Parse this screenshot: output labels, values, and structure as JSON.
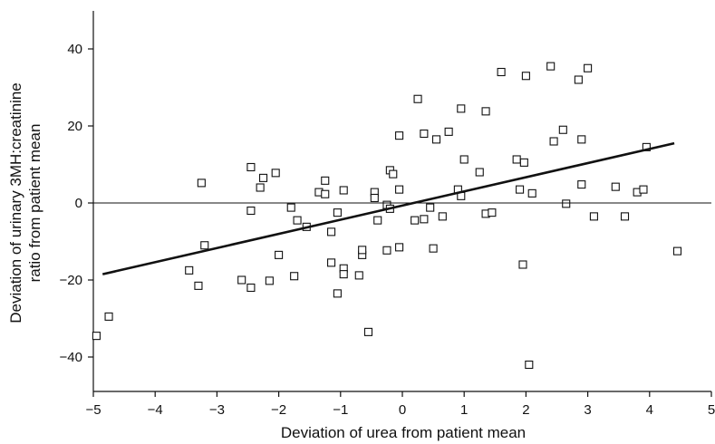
{
  "chart_data": {
    "type": "scatter",
    "title": "",
    "xlabel": "Deviation of urea from patient mean",
    "ylabel_line1": "Deviation of urinary 3MH:creatinine",
    "ylabel_line2": "ratio from patient mean",
    "xlim": [
      -5,
      5
    ],
    "ylim": [
      -50,
      50
    ],
    "x_ticks": [
      -5,
      -4,
      -3,
      -2,
      -1,
      0,
      1,
      2,
      3,
      4,
      5
    ],
    "x_tick_labels": [
      "−5",
      "−4",
      "−3",
      "−2",
      "−1",
      "0",
      "1",
      "2",
      "3",
      "4",
      "5"
    ],
    "y_ticks": [
      -40,
      -20,
      0,
      20,
      40
    ],
    "y_tick_labels": [
      "−40",
      "−20",
      "0",
      "20",
      "40"
    ],
    "grid": false,
    "marker": "open-square",
    "zero_reference_line": {
      "y": 0
    },
    "regression_line": {
      "x": [
        -4.85,
        4.4
      ],
      "y": [
        -18.5,
        15.5
      ]
    },
    "points": [
      [
        -4.95,
        -34.5
      ],
      [
        -4.75,
        -29.5
      ],
      [
        -3.45,
        -17.5
      ],
      [
        -3.3,
        -21.5
      ],
      [
        -3.25,
        5.2
      ],
      [
        -3.2,
        -11
      ],
      [
        -2.6,
        -20
      ],
      [
        -2.45,
        9.3
      ],
      [
        -2.45,
        -2
      ],
      [
        -2.45,
        -22
      ],
      [
        -2.3,
        4
      ],
      [
        -2.25,
        6.5
      ],
      [
        -2.15,
        -20.2
      ],
      [
        -2.05,
        7.8
      ],
      [
        -2.0,
        -13.5
      ],
      [
        -1.8,
        -1.2
      ],
      [
        -1.75,
        -19
      ],
      [
        -1.7,
        -4.5
      ],
      [
        -1.55,
        -6.2
      ],
      [
        -1.35,
        2.8
      ],
      [
        -1.25,
        5.8
      ],
      [
        -1.25,
        2.3
      ],
      [
        -1.15,
        -7.5
      ],
      [
        -1.15,
        -15.5
      ],
      [
        -1.05,
        -2.5
      ],
      [
        -1.05,
        -23.5
      ],
      [
        -0.95,
        -17
      ],
      [
        -0.95,
        -18.5
      ],
      [
        -0.95,
        3.3
      ],
      [
        -0.7,
        -18.8
      ],
      [
        -0.65,
        -13.5
      ],
      [
        -0.65,
        -12.2
      ],
      [
        -0.55,
        -33.5
      ],
      [
        -0.45,
        2.8
      ],
      [
        -0.45,
        1.3
      ],
      [
        -0.4,
        -4.5
      ],
      [
        -0.25,
        -0.5
      ],
      [
        -0.25,
        -12.3
      ],
      [
        -0.2,
        -1.5
      ],
      [
        -0.2,
        8.5
      ],
      [
        -0.15,
        7.5
      ],
      [
        -0.05,
        3.5
      ],
      [
        -0.05,
        -11.5
      ],
      [
        -0.05,
        17.5
      ],
      [
        0.2,
        -4.5
      ],
      [
        0.25,
        27
      ],
      [
        0.35,
        -4.2
      ],
      [
        0.35,
        18
      ],
      [
        0.45,
        -1.2
      ],
      [
        0.5,
        -11.8
      ],
      [
        0.55,
        16.5
      ],
      [
        0.65,
        -3.5
      ],
      [
        0.75,
        18.5
      ],
      [
        0.9,
        3.5
      ],
      [
        0.95,
        1.8
      ],
      [
        0.95,
        24.5
      ],
      [
        1.0,
        11.3
      ],
      [
        1.25,
        8
      ],
      [
        1.35,
        -2.8
      ],
      [
        1.35,
        23.8
      ],
      [
        1.45,
        -2.5
      ],
      [
        1.6,
        34
      ],
      [
        1.85,
        11.3
      ],
      [
        1.9,
        3.5
      ],
      [
        1.95,
        -16
      ],
      [
        1.97,
        10.5
      ],
      [
        2.0,
        33
      ],
      [
        2.05,
        -42
      ],
      [
        2.1,
        2.5
      ],
      [
        2.4,
        35.5
      ],
      [
        2.45,
        16
      ],
      [
        2.6,
        19
      ],
      [
        2.65,
        -0.2
      ],
      [
        2.85,
        32
      ],
      [
        2.9,
        4.8
      ],
      [
        2.9,
        16.5
      ],
      [
        3.0,
        35
      ],
      [
        3.1,
        -3.5
      ],
      [
        3.45,
        4.2
      ],
      [
        3.6,
        -3.5
      ],
      [
        3.8,
        2.8
      ],
      [
        3.9,
        3.5
      ],
      [
        3.95,
        14.5
      ],
      [
        4.45,
        -12.5
      ]
    ]
  }
}
